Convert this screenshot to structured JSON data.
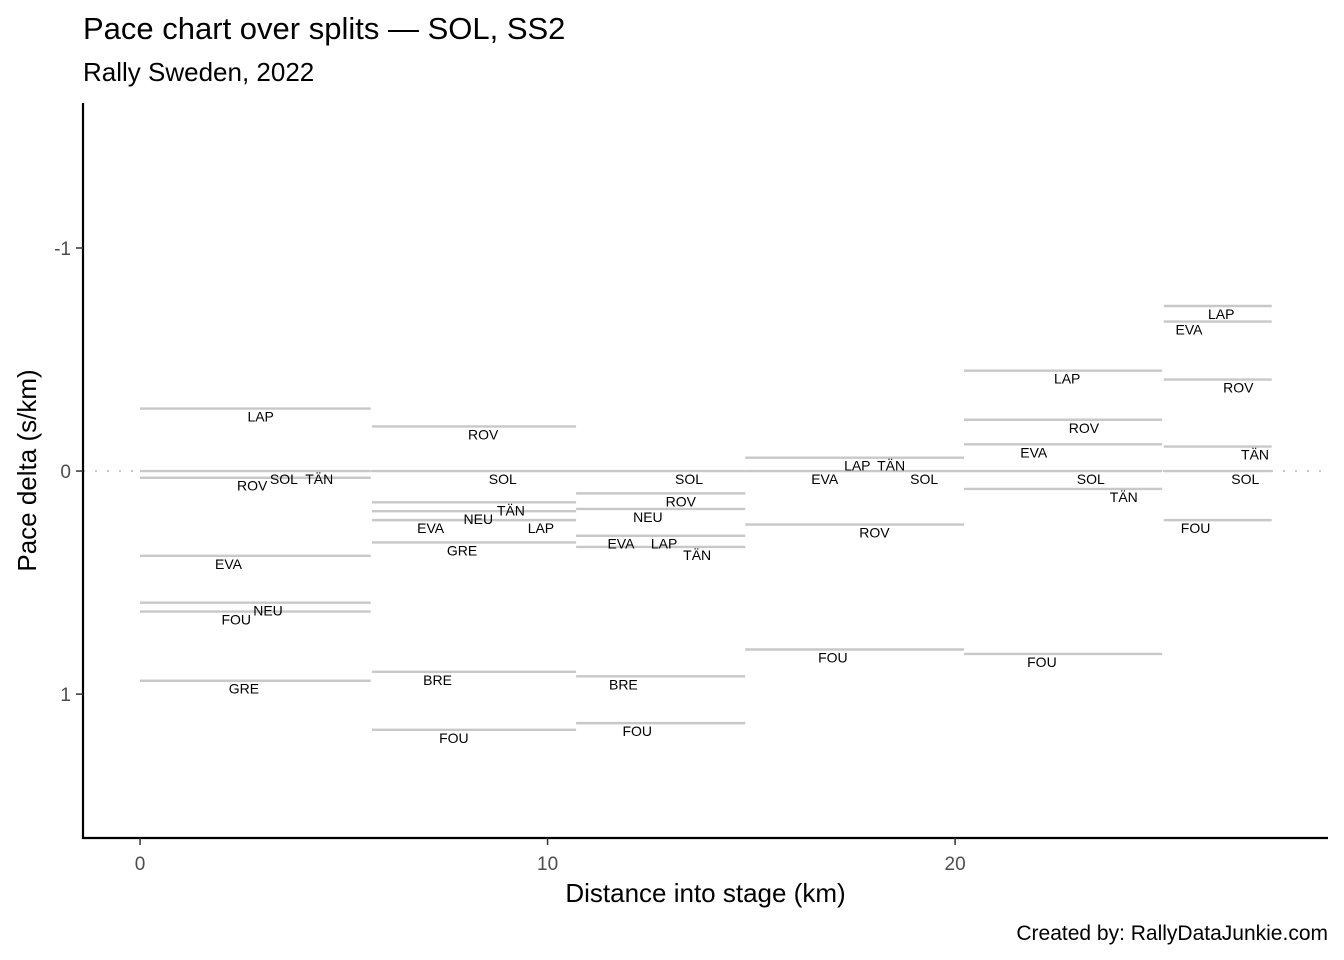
{
  "chart_data": {
    "type": "line",
    "title": "Pace chart over splits — SOL, SS2",
    "subtitle": "Rally Sweden, 2022",
    "caption": "Created by: RallyDataJunkie.com",
    "xlabel": "Distance into stage (km)",
    "ylabel": "Pace delta (s/km)",
    "xlim": [
      -1.4,
      29.15
    ],
    "ylim": [
      -1.65,
      1.645
    ],
    "y_reversed": true,
    "x_ticks": [
      0,
      10,
      20
    ],
    "x_tick_labels": [
      "0",
      "10",
      "20"
    ],
    "y_ticks": [
      -1,
      0,
      1
    ],
    "y_tick_labels": [
      "-1",
      "0",
      "1"
    ],
    "grid": false,
    "reference_line": {
      "y": 0,
      "style": "dotted"
    },
    "segment_color": "#c8c8c8",
    "segments": [
      {
        "x_start": 0,
        "x_end": 5.66,
        "drivers": [
          {
            "name": "LAP",
            "value": -0.28,
            "label_x": 2.96
          },
          {
            "name": "SOL",
            "value": 0.0,
            "label_x": 3.53
          },
          {
            "name": "TÄN",
            "value": 0.0,
            "label_x": 3.66
          },
          {
            "name": "ROV",
            "value": 0.03,
            "label_x": 3.34
          },
          {
            "name": "EVA",
            "value": 0.38,
            "label_x": 2.17
          },
          {
            "name": "NEU",
            "value": 0.59,
            "label_x": 3.14
          },
          {
            "name": "FOU",
            "value": 0.63,
            "label_x": 2.36
          },
          {
            "name": "GRE",
            "value": 0.94,
            "label_x": 2.55
          }
        ]
      },
      {
        "x_start": 5.69,
        "x_end": 10.7,
        "drivers": [
          {
            "name": "ROV",
            "value": -0.2,
            "label_x": 8.42
          },
          {
            "name": "SOL",
            "value": 0.0,
            "label_x": 8.9
          },
          {
            "name": "TÄN",
            "value": 0.14,
            "label_x": 9.1
          },
          {
            "name": "NEU",
            "value": 0.18,
            "label_x": 8.3
          },
          {
            "name": "EVA",
            "value": 0.22,
            "label_x": 7.13
          },
          {
            "name": "LAP",
            "value": 0.22,
            "label_x": 8.07
          },
          {
            "name": "GRE",
            "value": 0.32,
            "label_x": 7.9
          },
          {
            "name": "BRE",
            "value": 0.9,
            "label_x": 7.3
          },
          {
            "name": "FOU",
            "value": 1.16,
            "label_x": 7.7
          }
        ]
      },
      {
        "x_start": 10.7,
        "x_end": 14.85,
        "drivers": [
          {
            "name": "SOL",
            "value": 0.0,
            "label_x": 13.47
          },
          {
            "name": "ROV",
            "value": 0.1,
            "label_x": 13.27
          },
          {
            "name": "NEU",
            "value": 0.17,
            "label_x": 13.05
          },
          {
            "name": "EVA",
            "value": 0.29,
            "label_x": 11.8
          },
          {
            "name": "LAP",
            "value": 0.29,
            "label_x": 12.86
          },
          {
            "name": "TÄN",
            "value": 0.34,
            "label_x": 13.67
          },
          {
            "name": "BRE",
            "value": 0.92,
            "label_x": 11.86
          },
          {
            "name": "FOU",
            "value": 1.13,
            "label_x": 12.2
          }
        ]
      },
      {
        "x_start": 14.85,
        "x_end": 20.22,
        "drivers": [
          {
            "name": "LAP",
            "value": -0.06,
            "label_x": 17.6
          },
          {
            "name": "TÄN",
            "value": -0.06,
            "label_x": 18.43
          },
          {
            "name": "EVA",
            "value": 0.0,
            "label_x": 16.8
          },
          {
            "name": "SOL",
            "value": 0.0,
            "label_x": 18.21
          },
          {
            "name": "ROV",
            "value": 0.24,
            "label_x": 18.02
          },
          {
            "name": "FOU",
            "value": 0.8,
            "label_x": 17.0
          }
        ]
      },
      {
        "x_start": 20.22,
        "x_end": 25.08,
        "drivers": [
          {
            "name": "LAP",
            "value": -0.45,
            "label_x": 22.75
          },
          {
            "name": "ROV",
            "value": -0.23,
            "label_x": 23.16
          },
          {
            "name": "EVA",
            "value": -0.12,
            "label_x": 21.93
          },
          {
            "name": "SOL",
            "value": 0.0,
            "label_x": 23.33
          },
          {
            "name": "TÄN",
            "value": 0.08,
            "label_x": 23.55
          },
          {
            "name": "FOU",
            "value": 0.82,
            "label_x": 22.13
          }
        ]
      },
      {
        "x_start": 25.12,
        "x_end": 27.77,
        "drivers": [
          {
            "name": "LAP",
            "value": -0.74,
            "label_x": 26.53
          },
          {
            "name": "EVA",
            "value": -0.67,
            "label_x": 25.74
          },
          {
            "name": "ROV",
            "value": -0.41,
            "label_x": 26.95
          },
          {
            "name": "TÄN",
            "value": -0.11,
            "label_x": 27.36
          },
          {
            "name": "SOL",
            "value": 0.0,
            "label_x": 27.12
          },
          {
            "name": "FOU",
            "value": 0.22,
            "label_x": 25.9
          }
        ]
      }
    ]
  }
}
